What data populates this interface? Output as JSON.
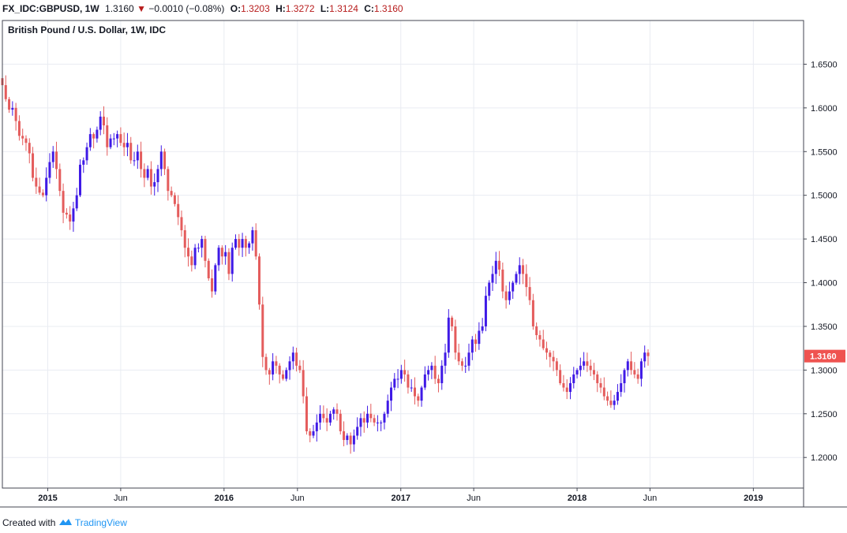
{
  "header": {
    "symbol": "FX_IDC:GBPUSD, 1W",
    "last": "1.3160",
    "change_arrow": "▼",
    "change": "−0.0010 (−0.08%)",
    "o_label": "O:",
    "o_value": "1.3203",
    "h_label": "H:",
    "h_value": "1.3272",
    "l_label": "L:",
    "l_value": "1.3124",
    "c_label": "C:",
    "c_value": "1.3160"
  },
  "footer": {
    "created_with": "Created with",
    "brand": "TradingView"
  },
  "colors": {
    "up": "#3f1ae6",
    "down": "#e45c5c",
    "grid": "#e9ecf2",
    "border": "#434651",
    "price_label_bg": "#ef5350",
    "text": "#131722"
  },
  "chart_data": {
    "type": "candlestick",
    "title": "British Pound / U.S. Dollar, 1W, IDC",
    "x_range": [
      "2014-09-29",
      "2019-04-15"
    ],
    "y_range": [
      1.165,
      1.7
    ],
    "y_ticks": [
      "1.6500",
      "1.6000",
      "1.5500",
      "1.5000",
      "1.4500",
      "1.4000",
      "1.3500",
      "1.3000",
      "1.2500",
      "1.2000"
    ],
    "x_ticks": [
      {
        "date": "2015-01-01",
        "label": "2015",
        "bold": true
      },
      {
        "date": "2015-06-01",
        "label": "Jun",
        "bold": false
      },
      {
        "date": "2016-01-01",
        "label": "2016",
        "bold": true
      },
      {
        "date": "2016-06-01",
        "label": "Jun",
        "bold": false
      },
      {
        "date": "2017-01-01",
        "label": "2017",
        "bold": true
      },
      {
        "date": "2017-06-01",
        "label": "Jun",
        "bold": false
      },
      {
        "date": "2018-01-01",
        "label": "2018",
        "bold": true
      },
      {
        "date": "2018-06-01",
        "label": "Jun",
        "bold": false
      },
      {
        "date": "2019-01-01",
        "label": "2019",
        "bold": true
      }
    ],
    "last_price": 1.316,
    "last_price_label": "1.3160",
    "start_date": "2014-09-29",
    "interval": "1W",
    "close_series": [
      1.626,
      1.61,
      1.598,
      1.6,
      1.585,
      1.568,
      1.565,
      1.56,
      1.548,
      1.52,
      1.51,
      1.503,
      1.5,
      1.52,
      1.538,
      1.55,
      1.53,
      1.505,
      1.48,
      1.478,
      1.47,
      1.485,
      1.5,
      1.535,
      1.54,
      1.555,
      1.57,
      1.565,
      1.575,
      1.59,
      1.58,
      1.555,
      1.565,
      1.565,
      1.57,
      1.56,
      1.555,
      1.56,
      1.54,
      1.54,
      1.55,
      1.53,
      1.52,
      1.53,
      1.51,
      1.515,
      1.53,
      1.55,
      1.53,
      1.505,
      1.5,
      1.49,
      1.475,
      1.46,
      1.44,
      1.43,
      1.42,
      1.44,
      1.44,
      1.45,
      1.425,
      1.405,
      1.39,
      1.42,
      1.44,
      1.43,
      1.435,
      1.41,
      1.44,
      1.45,
      1.44,
      1.45,
      1.44,
      1.445,
      1.46,
      1.43,
      1.375,
      1.315,
      1.3,
      1.295,
      1.31,
      1.305,
      1.295,
      1.29,
      1.3,
      1.31,
      1.32,
      1.305,
      1.3,
      1.27,
      1.23,
      1.225,
      1.23,
      1.24,
      1.25,
      1.245,
      1.24,
      1.25,
      1.255,
      1.25,
      1.23,
      1.22,
      1.225,
      1.215,
      1.225,
      1.235,
      1.245,
      1.24,
      1.25,
      1.245,
      1.24,
      1.24,
      1.24,
      1.25,
      1.265,
      1.28,
      1.29,
      1.29,
      1.3,
      1.295,
      1.28,
      1.28,
      1.27,
      1.265,
      1.28,
      1.295,
      1.3,
      1.305,
      1.29,
      1.285,
      1.305,
      1.32,
      1.36,
      1.35,
      1.32,
      1.31,
      1.305,
      1.305,
      1.32,
      1.335,
      1.33,
      1.345,
      1.35,
      1.385,
      1.4,
      1.41,
      1.425,
      1.415,
      1.39,
      1.38,
      1.39,
      1.4,
      1.41,
      1.42,
      1.41,
      1.395,
      1.38,
      1.35,
      1.34,
      1.335,
      1.325,
      1.32,
      1.315,
      1.31,
      1.3,
      1.285,
      1.28,
      1.275,
      1.285,
      1.295,
      1.3,
      1.305,
      1.31,
      1.305,
      1.3,
      1.295,
      1.285,
      1.28,
      1.27,
      1.265,
      1.26,
      1.265,
      1.275,
      1.285,
      1.3,
      1.31,
      1.3,
      1.295,
      1.29,
      1.31,
      1.32,
      1.316
    ]
  }
}
